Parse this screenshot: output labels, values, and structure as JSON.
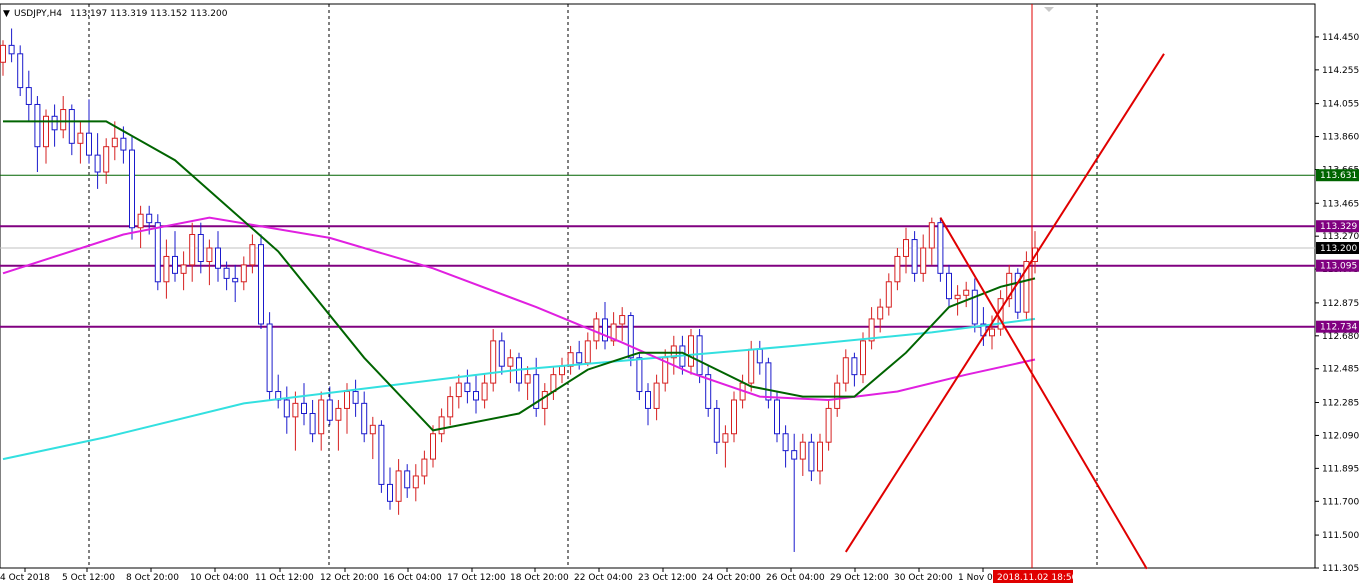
{
  "header": {
    "marker": "▼",
    "symbol": "USDJPY,H4",
    "ohlc": "113.197 113.319 113.152 113.200"
  },
  "colors": {
    "bull": "#d62020",
    "bear": "#1a1acc",
    "ma_fast": "#006400",
    "ma_mid": "#e020e0",
    "ma_slow": "#33e0e0",
    "hline_green": "#006400",
    "hline_purple": "#800080",
    "trend": "#e00000",
    "grid": "#000000"
  },
  "chart_data": {
    "type": "candlestick",
    "symbol": "USDJPY",
    "timeframe": "H4",
    "ylim": [
      111.305,
      114.645
    ],
    "price_ticks": [
      "114.450",
      "114.255",
      "114.055",
      "113.860",
      "113.665",
      "113.465",
      "113.270",
      "113.075",
      "112.875",
      "112.680",
      "112.485",
      "112.285",
      "112.090",
      "111.895",
      "111.700",
      "111.500",
      "111.305"
    ],
    "time_labels": [
      "4 Oct 2018",
      "5 Oct 12:00",
      "8 Oct 20:00",
      "10 Oct 04:00",
      "11 Oct 12:00",
      "12 Oct 20:00",
      "16 Oct 04:00",
      "17 Oct 12:00",
      "18 Oct 20:00",
      "22 Oct 04:00",
      "23 Oct 12:00",
      "24 Oct 20:00",
      "26 Oct 04:00",
      "29 Oct 12:00",
      "30 Oct 20:00",
      "1 Nov 0"
    ],
    "current_time_label": "2018.11.02 18:50",
    "horizontal_levels": [
      {
        "value": "113.631",
        "price": 113.631,
        "color": "green"
      },
      {
        "value": "113.329",
        "price": 113.329,
        "color": "purple"
      },
      {
        "value": "113.095",
        "price": 113.095,
        "color": "purple"
      },
      {
        "value": "112.734",
        "price": 112.734,
        "color": "purple"
      }
    ],
    "current_price": "113.200",
    "candles": [
      [
        114.3,
        114.43,
        114.22,
        114.4
      ],
      [
        114.4,
        114.5,
        114.3,
        114.35
      ],
      [
        114.35,
        114.4,
        114.1,
        114.15
      ],
      [
        114.15,
        114.25,
        113.95,
        114.05
      ],
      [
        114.05,
        114.1,
        113.65,
        113.8
      ],
      [
        113.8,
        114.02,
        113.7,
        113.98
      ],
      [
        113.98,
        114.05,
        113.8,
        113.9
      ],
      [
        113.9,
        114.1,
        113.85,
        114.02
      ],
      [
        114.02,
        114.05,
        113.75,
        113.82
      ],
      [
        113.82,
        113.95,
        113.7,
        113.88
      ],
      [
        113.88,
        114.08,
        113.7,
        113.75
      ],
      [
        113.75,
        113.88,
        113.55,
        113.65
      ],
      [
        113.65,
        113.85,
        113.58,
        113.8
      ],
      [
        113.8,
        113.95,
        113.72,
        113.85
      ],
      [
        113.85,
        113.92,
        113.7,
        113.78
      ],
      [
        113.78,
        113.86,
        113.25,
        113.32
      ],
      [
        113.32,
        113.45,
        113.2,
        113.4
      ],
      [
        113.4,
        113.45,
        113.28,
        113.35
      ],
      [
        113.35,
        113.4,
        112.95,
        113.0
      ],
      [
        113.0,
        113.25,
        112.9,
        113.15
      ],
      [
        113.15,
        113.3,
        113.0,
        113.05
      ],
      [
        113.05,
        113.18,
        112.95,
        113.1
      ],
      [
        113.1,
        113.35,
        113.0,
        113.28
      ],
      [
        113.28,
        113.35,
        113.05,
        113.12
      ],
      [
        113.12,
        113.25,
        112.98,
        113.2
      ],
      [
        113.2,
        113.3,
        113.0,
        113.08
      ],
      [
        113.08,
        113.12,
        112.95,
        113.02
      ],
      [
        113.02,
        113.1,
        112.88,
        113.0
      ],
      [
        113.0,
        113.15,
        112.95,
        113.1
      ],
      [
        113.1,
        113.28,
        113.05,
        113.22
      ],
      [
        113.22,
        113.28,
        112.72,
        112.75
      ],
      [
        112.75,
        112.82,
        112.3,
        112.35
      ],
      [
        112.35,
        112.45,
        112.25,
        112.3
      ],
      [
        112.3,
        112.38,
        112.1,
        112.2
      ],
      [
        112.2,
        112.35,
        112.0,
        112.28
      ],
      [
        112.28,
        112.4,
        112.15,
        112.22
      ],
      [
        112.22,
        112.3,
        112.05,
        112.1
      ],
      [
        112.1,
        112.35,
        112.0,
        112.3
      ],
      [
        112.3,
        112.38,
        112.15,
        112.18
      ],
      [
        112.18,
        112.3,
        112.0,
        112.25
      ],
      [
        112.25,
        112.4,
        112.1,
        112.35
      ],
      [
        112.35,
        112.42,
        112.2,
        112.28
      ],
      [
        112.28,
        112.35,
        112.05,
        112.1
      ],
      [
        112.1,
        112.2,
        111.95,
        112.15
      ],
      [
        112.15,
        112.18,
        111.75,
        111.8
      ],
      [
        111.8,
        111.9,
        111.65,
        111.7
      ],
      [
        111.7,
        111.95,
        111.62,
        111.88
      ],
      [
        111.88,
        111.92,
        111.72,
        111.78
      ],
      [
        111.78,
        111.92,
        111.7,
        111.85
      ],
      [
        111.85,
        112.0,
        111.8,
        111.95
      ],
      [
        111.95,
        112.15,
        111.9,
        112.1
      ],
      [
        112.1,
        112.25,
        112.05,
        112.2
      ],
      [
        112.2,
        112.38,
        112.15,
        112.32
      ],
      [
        112.32,
        112.45,
        112.25,
        112.4
      ],
      [
        112.4,
        112.48,
        112.28,
        112.35
      ],
      [
        112.35,
        112.45,
        112.22,
        112.3
      ],
      [
        112.3,
        112.45,
        112.25,
        112.4
      ],
      [
        112.4,
        112.72,
        112.35,
        112.65
      ],
      [
        112.65,
        112.7,
        112.45,
        112.5
      ],
      [
        112.5,
        112.6,
        112.4,
        112.55
      ],
      [
        112.55,
        112.58,
        112.35,
        112.4
      ],
      [
        112.4,
        112.5,
        112.3,
        112.45
      ],
      [
        112.45,
        112.55,
        112.2,
        112.25
      ],
      [
        112.25,
        112.4,
        112.15,
        112.35
      ],
      [
        112.35,
        112.5,
        112.3,
        112.45
      ],
      [
        112.45,
        112.55,
        112.4,
        112.5
      ],
      [
        112.5,
        112.62,
        112.45,
        112.58
      ],
      [
        112.58,
        112.65,
        112.48,
        112.52
      ],
      [
        112.52,
        112.7,
        112.5,
        112.65
      ],
      [
        112.65,
        112.82,
        112.6,
        112.78
      ],
      [
        112.78,
        112.88,
        112.6,
        112.65
      ],
      [
        112.65,
        112.82,
        112.62,
        112.75
      ],
      [
        112.75,
        112.85,
        112.65,
        112.8
      ],
      [
        112.8,
        112.82,
        112.5,
        112.55
      ],
      [
        112.55,
        112.58,
        112.3,
        112.35
      ],
      [
        112.35,
        112.4,
        112.15,
        112.25
      ],
      [
        112.25,
        112.45,
        112.18,
        112.4
      ],
      [
        112.4,
        112.6,
        112.35,
        112.55
      ],
      [
        112.55,
        112.68,
        112.45,
        112.62
      ],
      [
        112.62,
        112.68,
        112.45,
        112.5
      ],
      [
        112.5,
        112.72,
        112.45,
        112.68
      ],
      [
        112.68,
        112.72,
        112.4,
        112.45
      ],
      [
        112.45,
        112.5,
        112.2,
        112.25
      ],
      [
        112.25,
        112.3,
        111.98,
        112.05
      ],
      [
        112.05,
        112.15,
        111.9,
        112.1
      ],
      [
        112.1,
        112.35,
        112.05,
        112.3
      ],
      [
        112.3,
        112.45,
        112.25,
        112.4
      ],
      [
        112.4,
        112.65,
        112.35,
        112.6
      ],
      [
        112.6,
        112.65,
        112.45,
        112.52
      ],
      [
        112.52,
        112.55,
        112.25,
        112.3
      ],
      [
        112.3,
        112.35,
        112.05,
        112.1
      ],
      [
        112.1,
        112.15,
        111.9,
        112.0
      ],
      [
        112.0,
        112.1,
        111.4,
        111.95
      ],
      [
        111.95,
        112.1,
        111.85,
        112.05
      ],
      [
        112.05,
        112.1,
        111.82,
        111.88
      ],
      [
        111.88,
        112.1,
        111.8,
        112.05
      ],
      [
        112.05,
        112.3,
        112.0,
        112.25
      ],
      [
        112.25,
        112.45,
        112.2,
        112.4
      ],
      [
        112.4,
        112.6,
        112.35,
        112.55
      ],
      [
        112.55,
        112.58,
        112.38,
        112.45
      ],
      [
        112.45,
        112.7,
        112.4,
        112.65
      ],
      [
        112.65,
        112.85,
        112.6,
        112.78
      ],
      [
        112.78,
        112.9,
        112.7,
        112.85
      ],
      [
        112.85,
        113.05,
        112.8,
        113.0
      ],
      [
        113.0,
        113.2,
        112.95,
        113.15
      ],
      [
        113.15,
        113.32,
        113.05,
        113.25
      ],
      [
        113.25,
        113.3,
        113.0,
        113.05
      ],
      [
        113.05,
        113.28,
        113.0,
        113.2
      ],
      [
        113.2,
        113.38,
        113.1,
        113.35
      ],
      [
        113.35,
        113.38,
        113.0,
        113.05
      ],
      [
        113.05,
        113.1,
        112.85,
        112.9
      ],
      [
        112.9,
        112.98,
        112.8,
        112.92
      ],
      [
        112.92,
        113.0,
        112.85,
        112.95
      ],
      [
        112.95,
        113.02,
        112.7,
        112.75
      ],
      [
        112.75,
        112.85,
        112.62,
        112.68
      ],
      [
        112.68,
        112.8,
        112.6,
        112.72
      ],
      [
        112.72,
        112.95,
        112.68,
        112.9
      ],
      [
        112.9,
        113.1,
        112.85,
        113.05
      ],
      [
        113.05,
        113.08,
        112.78,
        112.82
      ],
      [
        112.82,
        113.18,
        112.78,
        113.12
      ],
      [
        113.12,
        113.3,
        113.05,
        113.2
      ]
    ],
    "ma_fast": [
      [
        0,
        113.95
      ],
      [
        12,
        113.95
      ],
      [
        20,
        113.72
      ],
      [
        32,
        113.18
      ],
      [
        42,
        112.55
      ],
      [
        50,
        112.12
      ],
      [
        60,
        112.22
      ],
      [
        68,
        112.48
      ],
      [
        74,
        112.58
      ],
      [
        79,
        112.58
      ],
      [
        87,
        112.38
      ],
      [
        93,
        112.32
      ],
      [
        99,
        112.32
      ],
      [
        105,
        112.58
      ],
      [
        110,
        112.85
      ],
      [
        116,
        112.97
      ],
      [
        120,
        113.02
      ]
    ],
    "ma_mid": [
      [
        0,
        113.05
      ],
      [
        14,
        113.28
      ],
      [
        24,
        113.38
      ],
      [
        38,
        113.26
      ],
      [
        50,
        113.08
      ],
      [
        62,
        112.85
      ],
      [
        72,
        112.64
      ],
      [
        80,
        112.46
      ],
      [
        88,
        112.32
      ],
      [
        96,
        112.3
      ],
      [
        104,
        112.35
      ],
      [
        112,
        112.45
      ],
      [
        120,
        112.54
      ]
    ],
    "ma_slow": [
      [
        0,
        111.95
      ],
      [
        12,
        112.08
      ],
      [
        28,
        112.28
      ],
      [
        44,
        112.38
      ],
      [
        60,
        112.48
      ],
      [
        76,
        112.55
      ],
      [
        92,
        112.62
      ],
      [
        108,
        112.7
      ],
      [
        120,
        112.78
      ]
    ],
    "trend_lines": [
      {
        "from": [
          111.4,
          98
        ],
        "to": [
          114.35,
          135
        ],
        "label": "rising"
      },
      {
        "from": [
          113.38,
          109
        ],
        "to": [
          111.3,
          133
        ],
        "label": "falling"
      }
    ]
  }
}
